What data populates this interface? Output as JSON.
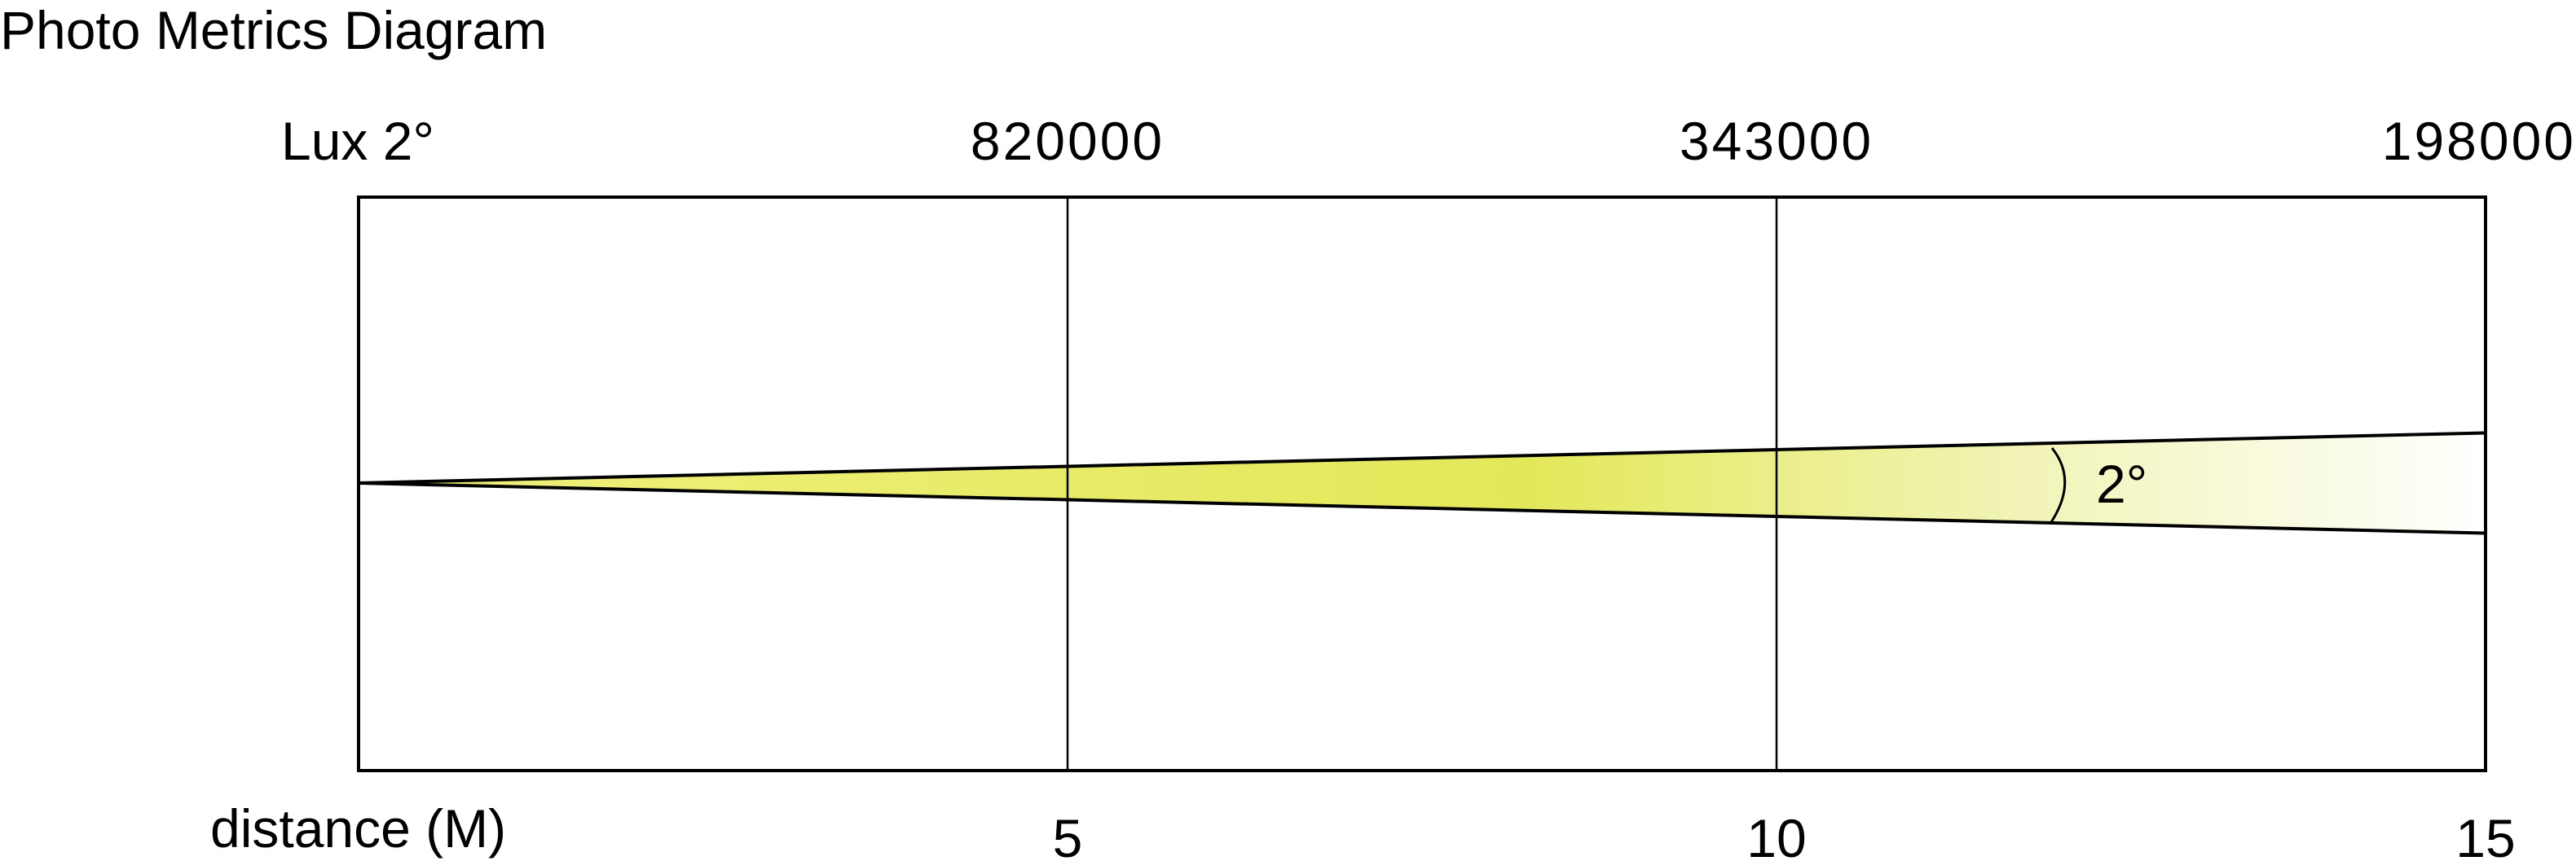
{
  "title": "Photo Metrics Diagram",
  "chart_data": {
    "type": "diagram-beam",
    "title": "Photo Metrics Diagram",
    "top_label": "Lux 2°",
    "xlabel": "distance (M)",
    "beam_angle_label": "2°",
    "beam_angle_deg": 2,
    "xlim": [
      0,
      15
    ],
    "x_ticks": [
      {
        "label": "5",
        "value": 5
      },
      {
        "label": "10",
        "value": 10
      },
      {
        "label": "15",
        "value": 15
      }
    ],
    "lux_labels": [
      {
        "distance": 5,
        "label": "820000"
      },
      {
        "distance": 10,
        "label": "343000"
      },
      {
        "distance": 15,
        "label": "198000"
      }
    ],
    "grid": true,
    "colors": {
      "beam": "#e3e85a",
      "line": "#000000",
      "background": "#ffffff"
    }
  }
}
